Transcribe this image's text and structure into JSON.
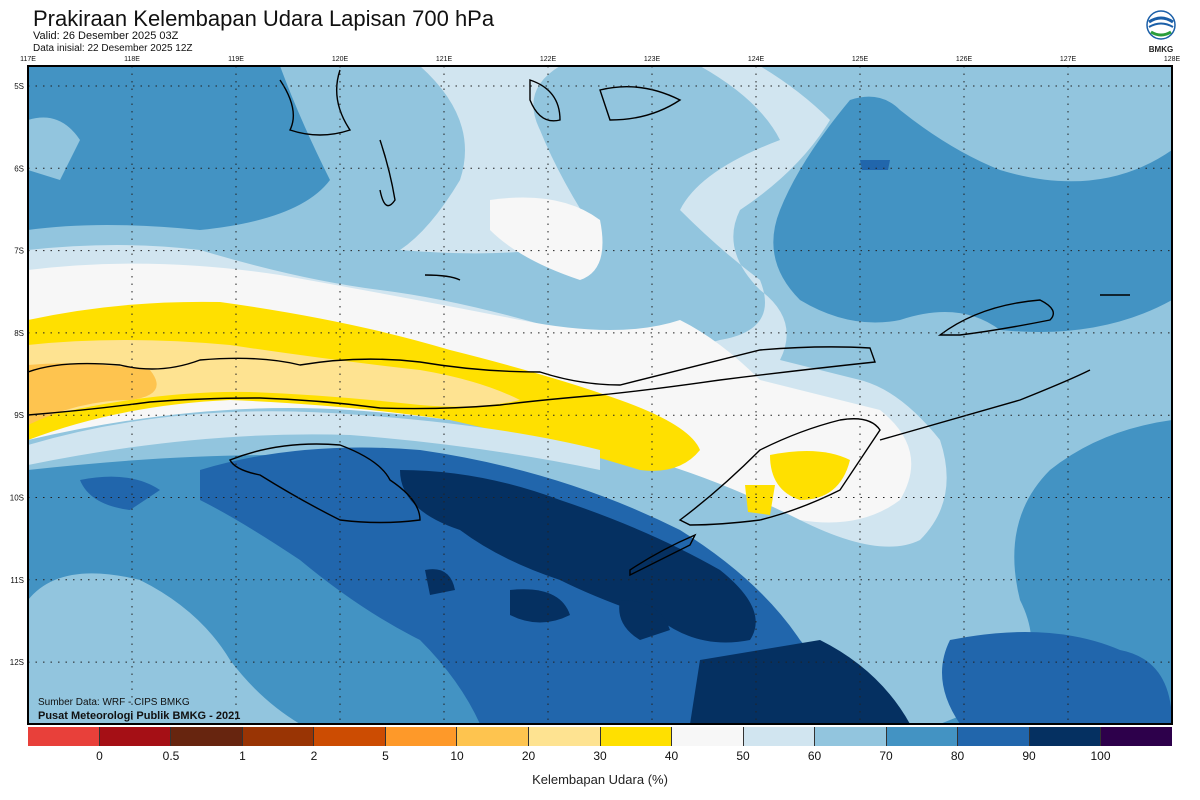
{
  "header": {
    "title": "Prakiraan Kelembapan Udara Lapisan 700 hPa",
    "valid": "Valid: 26 Desember 2025 03Z",
    "init": "Data inisial: 22 Desember 2025 12Z",
    "logo_text": "BMKG"
  },
  "map": {
    "lon_labels": [
      "117E",
      "118E",
      "119E",
      "120E",
      "121E",
      "122E",
      "123E",
      "124E",
      "125E",
      "126E",
      "127E",
      "128E"
    ],
    "lat_labels": [
      "5S",
      "6S",
      "7S",
      "8S",
      "9S",
      "10S",
      "11S",
      "12S"
    ],
    "credit_source": "Sumber Data: WRF - CIPS BMKG",
    "credit_org": "Pusat Meteorologi Publik BMKG - 2021"
  },
  "legend": {
    "title": "Kelembapan Udara (%)",
    "colors": [
      "#e8403a",
      "#a50f15",
      "#67250f",
      "#993404",
      "#cc4c02",
      "#fe9929",
      "#fec44f",
      "#fee391",
      "#ffe000",
      "#f7f7f7",
      "#d1e5f0",
      "#92c5de",
      "#4393c3",
      "#2166ac",
      "#053061",
      "#2d004b"
    ],
    "ticks": [
      "0",
      "0.5",
      "1",
      "2",
      "5",
      "10",
      "20",
      "30",
      "40",
      "50",
      "60",
      "70",
      "80",
      "90",
      "100"
    ]
  }
}
